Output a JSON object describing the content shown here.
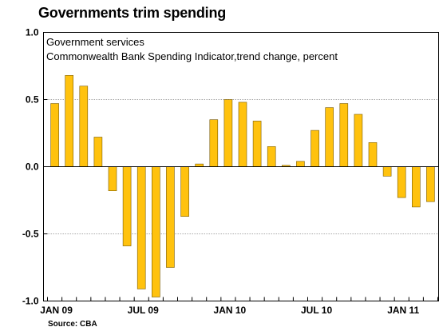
{
  "title": "Governments trim spending",
  "source": "Source: CBA",
  "chart_data": {
    "type": "bar",
    "subtitle_lines": [
      "Government services",
      "Commonwealth Bank Spending Indicator,trend change, percent"
    ],
    "x_tick_labels": [
      "JAN 09",
      "JUL 09",
      "JAN 10",
      "JUL 10",
      "JAN 11"
    ],
    "y_ticks": [
      {
        "value": 1.0,
        "label": "1.0"
      },
      {
        "value": 0.5,
        "label": "0.5"
      },
      {
        "value": 0.0,
        "label": "0.0"
      },
      {
        "value": -0.5,
        "label": "-0.5"
      },
      {
        "value": -1.0,
        "label": "-1.0"
      }
    ],
    "ylim": [
      -1.0,
      1.0
    ],
    "bar_color": "#FFC20E",
    "bar_edge_color": "#7A5A00",
    "gridlines": true,
    "values": [
      0.47,
      0.68,
      0.6,
      0.22,
      -0.18,
      -0.59,
      -0.91,
      -0.97,
      -0.75,
      -0.37,
      0.02,
      0.35,
      0.5,
      0.48,
      0.34,
      0.15,
      0.01,
      0.04,
      0.27,
      0.44,
      0.47,
      0.39,
      0.18,
      -0.07,
      -0.23,
      -0.3,
      -0.26
    ]
  }
}
